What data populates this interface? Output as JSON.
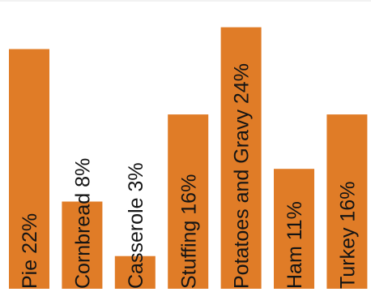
{
  "chart_data": {
    "type": "bar",
    "categories": [
      "Pie",
      "Cornbread",
      "Casserole",
      "Stuffing",
      "Potatoes and Gravy",
      "Ham",
      "Turkey"
    ],
    "values": [
      22,
      8,
      3,
      16,
      24,
      11,
      16
    ],
    "value_suffix": "%",
    "ylim": [
      0,
      26.5
    ],
    "bar_color": "#E07C27",
    "label_color": "#141414",
    "grid": false,
    "legend": "none",
    "labels": [
      "Pie 22%",
      "Cornbread 8%",
      "Casserole 3%",
      "Stuffing 16%",
      "Potatoes and Gravy 24%",
      "Ham 11%",
      "Turkey 16%"
    ]
  }
}
